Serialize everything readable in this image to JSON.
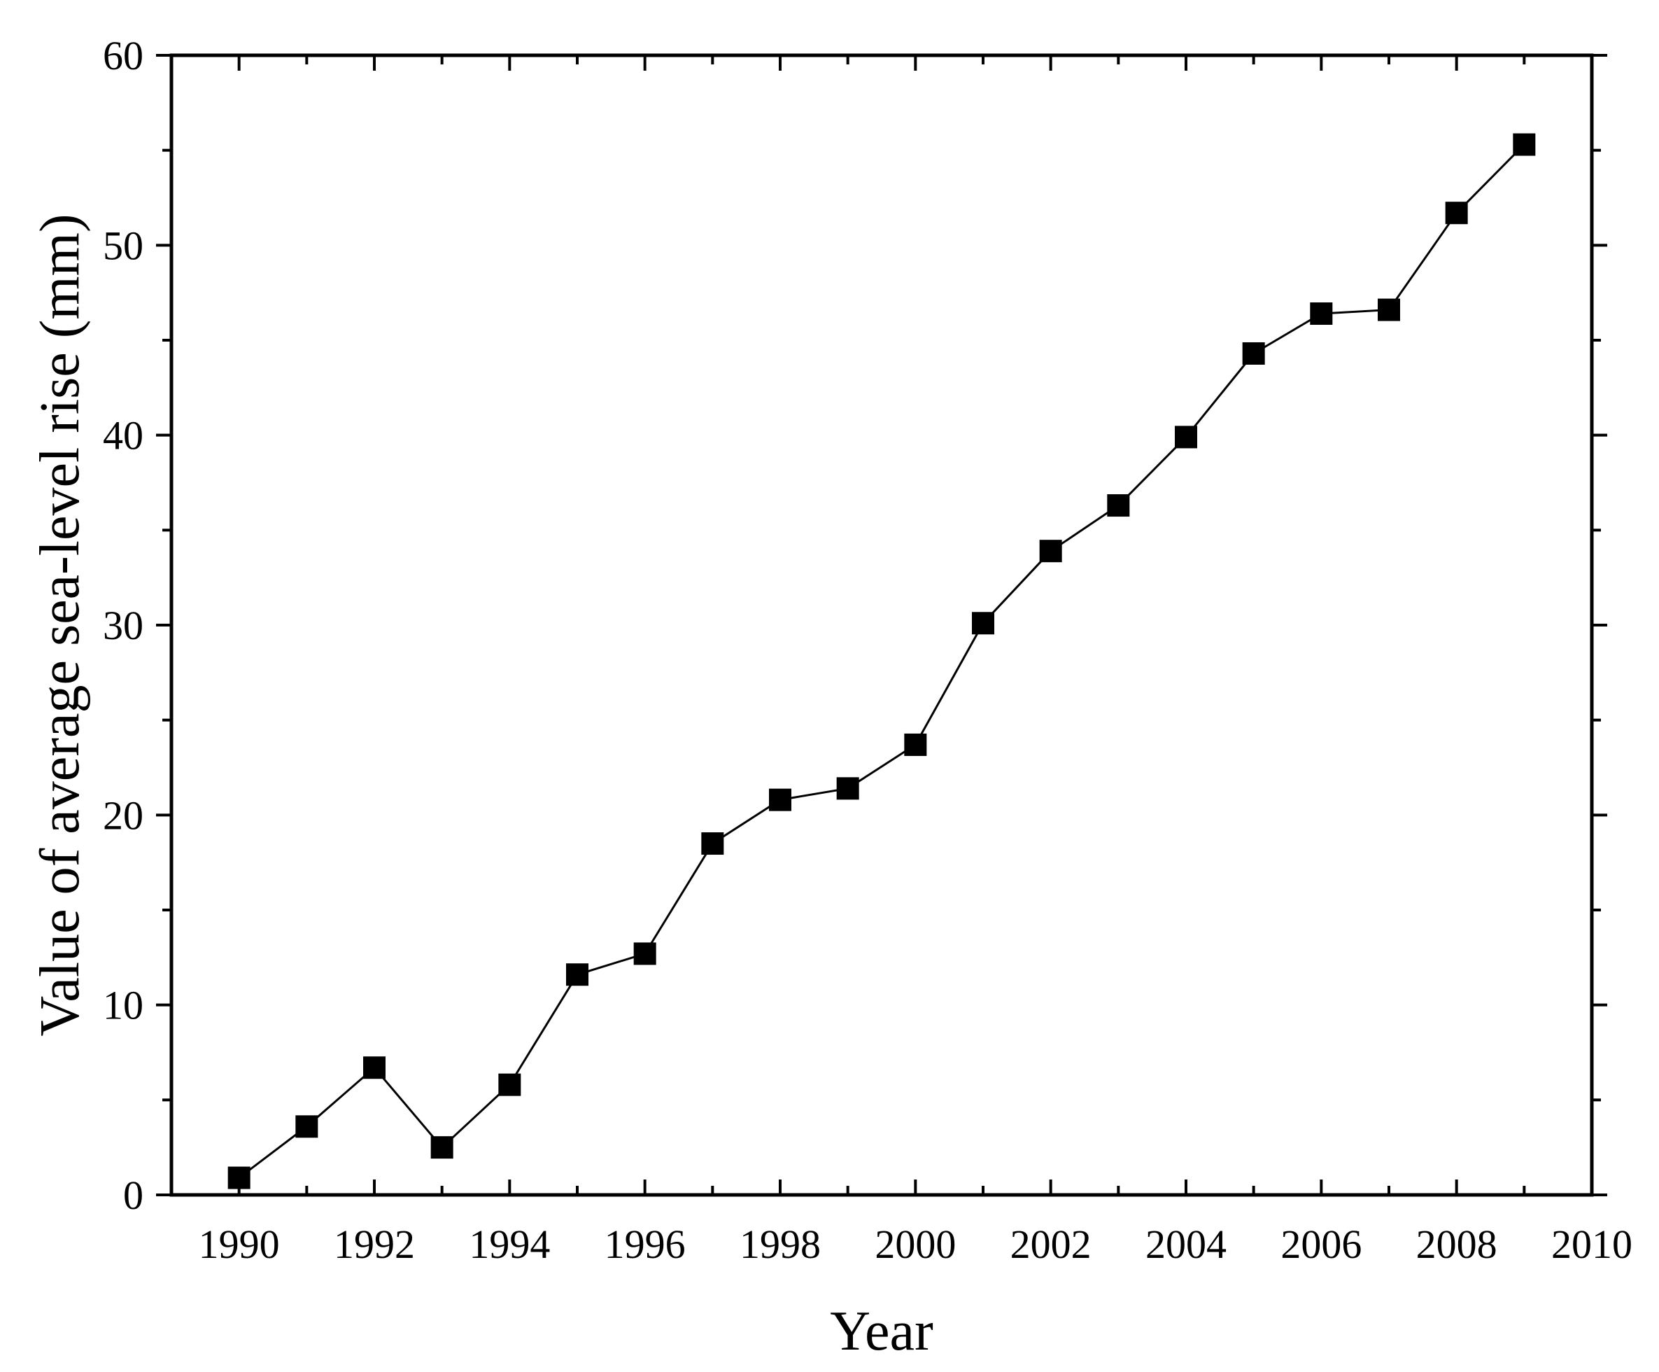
{
  "chart_data": {
    "type": "line",
    "title": "",
    "xlabel": "Year",
    "ylabel": "Value of average sea-level rise (mm)",
    "xlim": [
      1989,
      2010
    ],
    "ylim": [
      0,
      60
    ],
    "x_ticks": [
      1990,
      1992,
      1994,
      1996,
      1998,
      2000,
      2002,
      2004,
      2006,
      2008,
      2010
    ],
    "x_minor_ticks": [
      1991,
      1993,
      1995,
      1997,
      1999,
      2001,
      2003,
      2005,
      2007,
      2009
    ],
    "y_ticks": [
      0,
      10,
      20,
      30,
      40,
      50,
      60
    ],
    "y_minor_ticks": [
      5,
      15,
      25,
      35,
      45,
      55
    ],
    "grid": false,
    "legend": "none",
    "marker": "square",
    "colors": {
      "line": "#000000",
      "marker": "#000000",
      "axes": "#000000"
    },
    "series": [
      {
        "x": [
          1990,
          1991,
          1992,
          1993,
          1994,
          1995,
          1996,
          1997,
          1998,
          1999,
          2000,
          2001,
          2002,
          2003,
          2004,
          2005,
          2006,
          2007,
          2008,
          2009
        ],
        "values": [
          0.9,
          3.6,
          6.7,
          2.5,
          5.8,
          11.6,
          12.7,
          18.5,
          20.8,
          21.4,
          23.7,
          30.1,
          33.9,
          36.3,
          39.9,
          44.3,
          46.4,
          46.6,
          51.7,
          55.3
        ]
      }
    ]
  }
}
